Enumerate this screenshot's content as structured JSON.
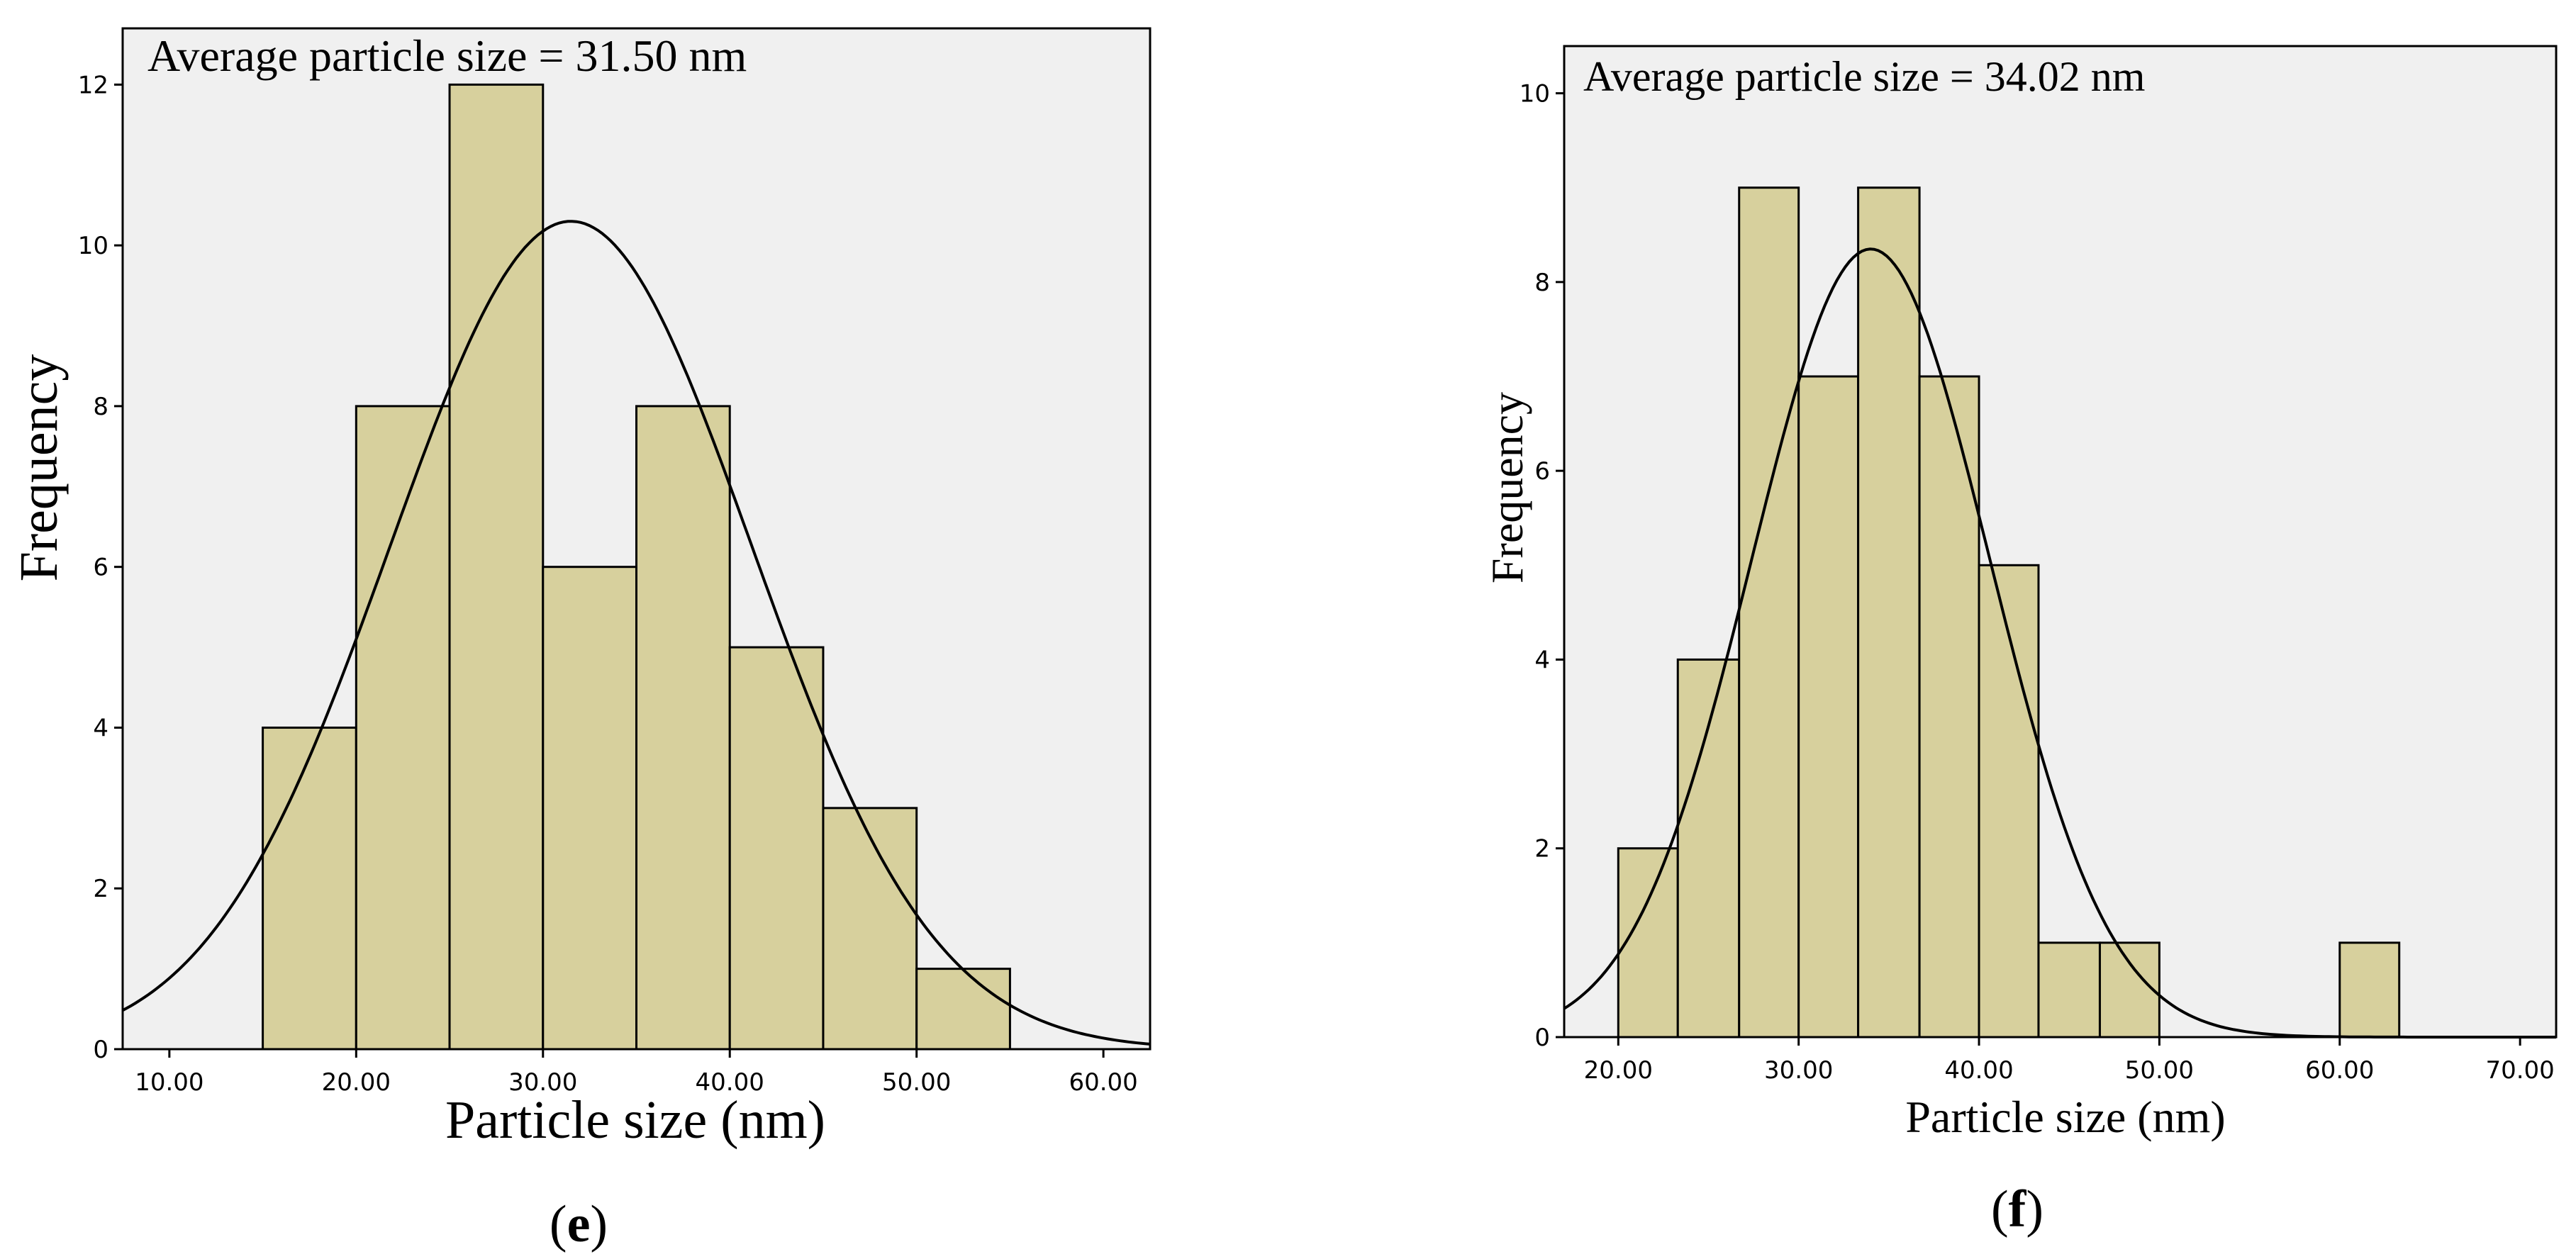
{
  "chart_data": [
    {
      "type": "bar",
      "panel": "e",
      "annotation": "Average particle size = 31.50 nm",
      "xlabel": "Particle size (nm)",
      "ylabel": "Frequency",
      "xlim": [
        7.5,
        62.5
      ],
      "ylim": [
        0,
        12.7
      ],
      "xticks": [
        10,
        20,
        30,
        40,
        50,
        60
      ],
      "xtick_labels": [
        "10.00",
        "20.00",
        "30.00",
        "40.00",
        "50.00",
        "60.00"
      ],
      "yticks": [
        0,
        2,
        4,
        6,
        8,
        10,
        12
      ],
      "ytick_labels": [
        "0",
        "2",
        "4",
        "6",
        "8",
        "10",
        "12"
      ],
      "bins": [
        {
          "from": 15,
          "to": 20,
          "count": 4
        },
        {
          "from": 20,
          "to": 25,
          "count": 8
        },
        {
          "from": 25,
          "to": 30,
          "count": 12
        },
        {
          "from": 30,
          "to": 35,
          "count": 6
        },
        {
          "from": 35,
          "to": 40,
          "count": 8
        },
        {
          "from": 40,
          "to": 45,
          "count": 5
        },
        {
          "from": 45,
          "to": 50,
          "count": 3
        },
        {
          "from": 50,
          "to": 55,
          "count": 1
        }
      ],
      "normal_curve": {
        "mean": 31.5,
        "peak": 10.3,
        "sd": 9.7
      }
    },
    {
      "type": "bar",
      "panel": "f",
      "annotation": "Average particle size = 34.02 nm",
      "xlabel": "Particle size (nm)",
      "ylabel": "Frequency",
      "xlim": [
        17,
        72
      ],
      "ylim": [
        0,
        10.5
      ],
      "xticks": [
        20,
        30,
        40,
        50,
        60,
        70
      ],
      "xtick_labels": [
        "20.00",
        "30.00",
        "40.00",
        "50.00",
        "60.00",
        "70.00"
      ],
      "yticks": [
        0,
        2,
        4,
        6,
        8,
        10
      ],
      "ytick_labels": [
        "0",
        "2",
        "4",
        "6",
        "8",
        "10"
      ],
      "bins": [
        {
          "from": 20.0,
          "to": 23.3,
          "count": 2
        },
        {
          "from": 23.3,
          "to": 26.7,
          "count": 4
        },
        {
          "from": 26.7,
          "to": 30.0,
          "count": 9
        },
        {
          "from": 30.0,
          "to": 33.3,
          "count": 7
        },
        {
          "from": 33.3,
          "to": 36.7,
          "count": 9
        },
        {
          "from": 36.7,
          "to": 40.0,
          "count": 7
        },
        {
          "from": 40.0,
          "to": 43.3,
          "count": 5
        },
        {
          "from": 43.3,
          "to": 46.7,
          "count": 1
        },
        {
          "from": 46.7,
          "to": 50.0,
          "count": 1
        },
        {
          "from": 60.0,
          "to": 63.3,
          "count": 1
        }
      ],
      "normal_curve": {
        "mean": 34.0,
        "peak": 8.35,
        "sd": 6.6
      }
    }
  ],
  "captions": {
    "e": {
      "open": "(",
      "letter": "e",
      "close": ")"
    },
    "f": {
      "open": "(",
      "letter": "f",
      "close": ")"
    }
  },
  "colors": {
    "bar_fill": "#d7d09d",
    "plot_background": "#f0f0f0",
    "curve": "#000000"
  }
}
